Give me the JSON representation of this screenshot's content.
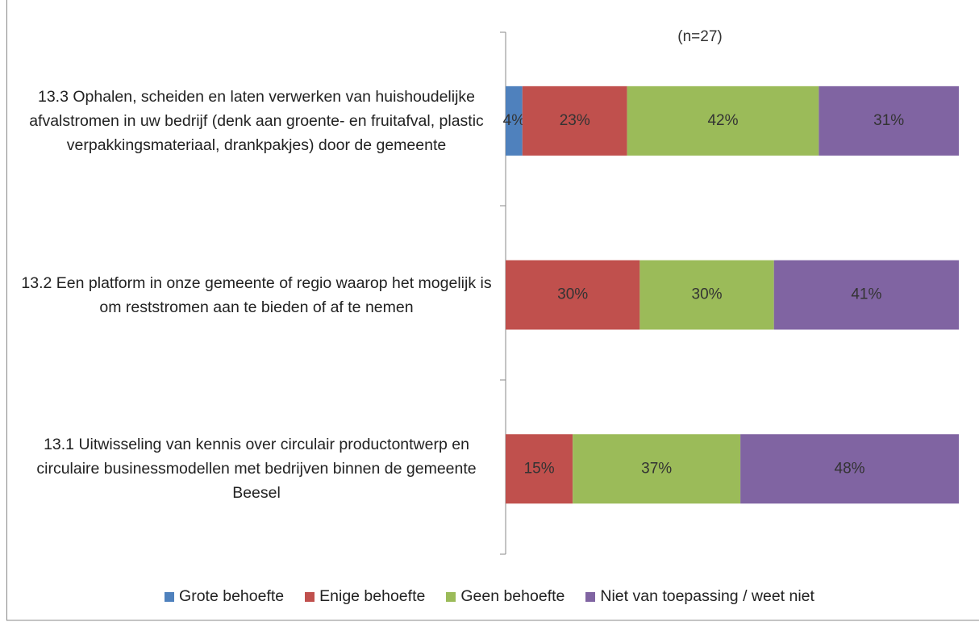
{
  "chart_data": {
    "type": "stacked-bar-horizontal",
    "subtitle": "(n=27)",
    "categories": [
      "13.3 Ophalen, scheiden en laten verwerken van huishoudelijke afvalstromen in uw bedrijf (denk aan groente- en fruitafval, plastic verpakkingsmateriaal, drankpakjes) door de gemeente",
      "13.2 Een platform in onze gemeente of regio waarop het mogelijk is om reststromen aan te bieden of af te nemen",
      "13.1 Uitwisseling van kennis over circulair productontwerp en circulaire businessmodellen met bedrijven binnen de gemeente Beesel"
    ],
    "series": [
      {
        "name": "Grote behoefte",
        "color": "#4f81bd",
        "values": [
          3.7,
          0,
          0
        ],
        "value_labels": [
          "4%",
          null,
          null
        ]
      },
      {
        "name": "Enige behoefte",
        "color": "#c0504d",
        "values": [
          23.1,
          29.6,
          14.8
        ],
        "value_labels": [
          "23%",
          "30%",
          "15%"
        ]
      },
      {
        "name": "Geen behoefte",
        "color": "#9bbb59",
        "values": [
          42.3,
          29.6,
          37
        ],
        "value_labels": [
          "42%",
          "30%",
          "37%"
        ]
      },
      {
        "name": "Niet van toepassing / weet niet",
        "color": "#8064a2",
        "values": [
          30.9,
          40.8,
          48.2
        ],
        "value_labels": [
          "31%",
          "41%",
          "48%"
        ]
      }
    ],
    "xlim": [
      0,
      100
    ],
    "legend": "bottom"
  }
}
